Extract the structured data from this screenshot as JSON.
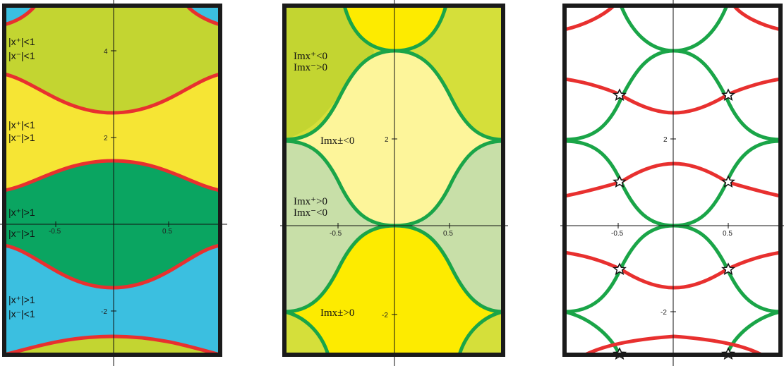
{
  "panels": [
    {
      "id": "modulus",
      "regions": [
        {
          "key": "x_plus_lt1_x_minus_lt1",
          "color": "#c3d531"
        },
        {
          "key": "x_plus_lt1_x_minus_gt1",
          "color": "#f6e534"
        },
        {
          "key": "x_plus_gt1_x_minus_gt1",
          "color": "#0aa561"
        },
        {
          "key": "x_plus_gt1_x_minus_lt1",
          "color": "#3bbfe0"
        }
      ],
      "labels": [
        {
          "key": "r1",
          "lines": [
            "|x⁺|<1",
            "|x⁻|<1"
          ]
        },
        {
          "key": "r2",
          "lines": [
            "|x⁺|<1",
            "|x⁻|>1"
          ]
        },
        {
          "key": "r3",
          "lines": [
            "|x⁺|>1",
            "|x⁻|>1"
          ]
        },
        {
          "key": "r4",
          "lines": [
            "|x⁺|>1",
            "|x⁻|<1"
          ]
        }
      ],
      "curve_color": "#e8302f"
    },
    {
      "id": "imaginary",
      "regions": [
        {
          "key": "outer_top",
          "color": "#d5df3a"
        },
        {
          "key": "inner_top",
          "color": "#fdf59a"
        },
        {
          "key": "left_band",
          "color": "#c8dfa8"
        },
        {
          "key": "yellow",
          "color": "#fdeb00"
        }
      ],
      "labels": [
        {
          "key": "a",
          "lines": [
            "Imx⁺<0",
            "Imx⁻>0"
          ]
        },
        {
          "key": "b",
          "lines": [
            "Imx±<0"
          ]
        },
        {
          "key": "c",
          "lines": [
            "Imx⁺>0",
            "Imx⁻<0"
          ]
        },
        {
          "key": "d",
          "lines": [
            "Imx±>0"
          ]
        }
      ],
      "curve_color": "#1aa548"
    },
    {
      "id": "overlay",
      "curve_colors": {
        "red": "#e8302f",
        "green": "#1aa548"
      },
      "marker": "star"
    }
  ],
  "axis": {
    "x_ticks": [
      "-0.5",
      "0.5"
    ],
    "y_ticks": [
      "4",
      "2",
      "-2"
    ]
  }
}
